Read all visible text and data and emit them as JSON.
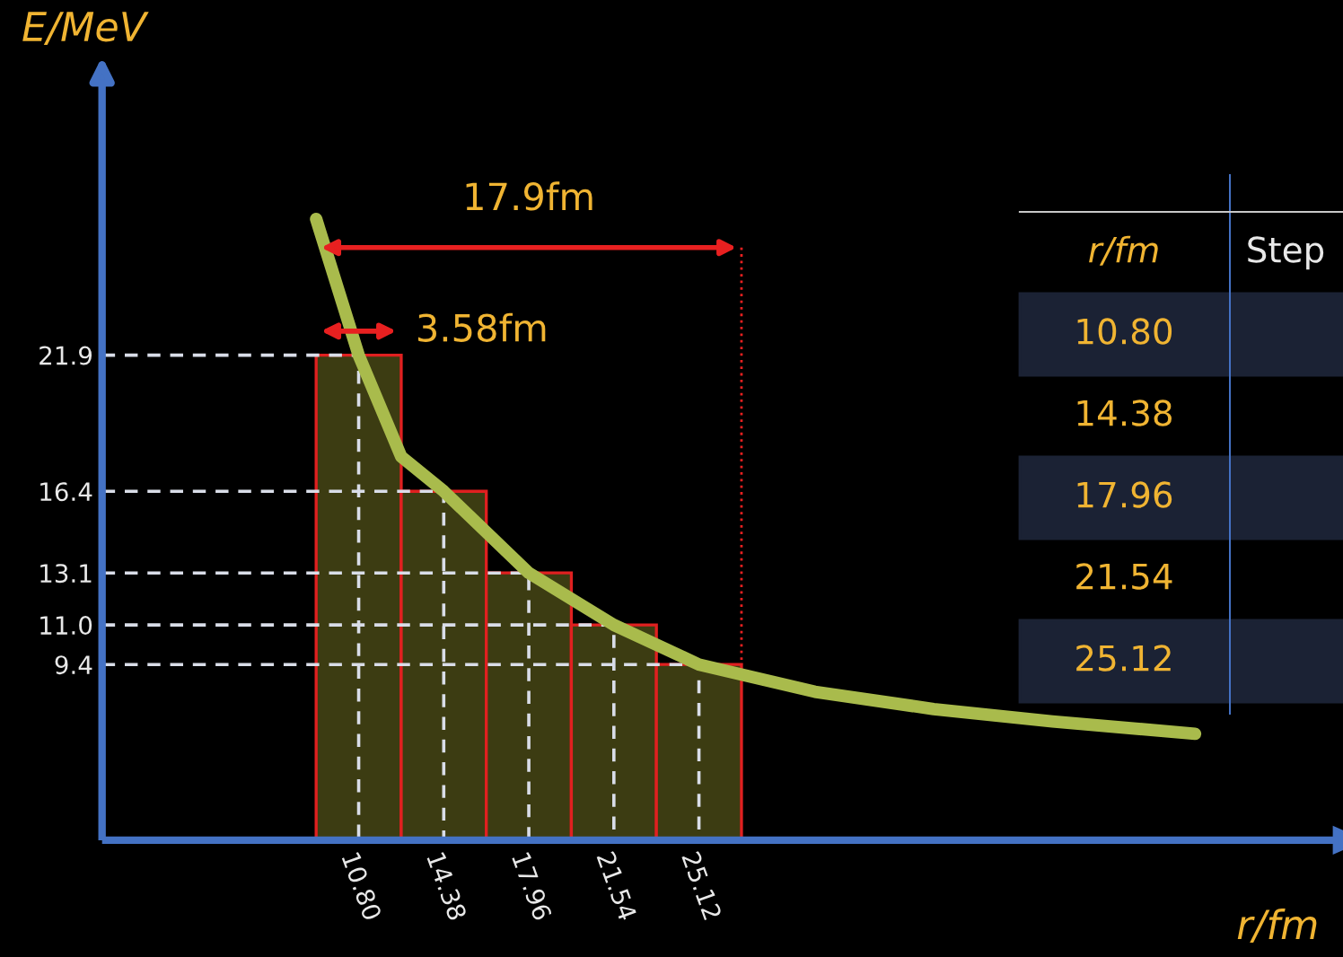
{
  "chart_data": {
    "type": "histogram",
    "xlabel": "r/fm",
    "ylabel": "E/MeV",
    "bins": [
      9.01,
      12.59,
      16.17,
      19.75,
      23.33,
      26.91
    ],
    "values": [
      21.9,
      16.4,
      13.1,
      11.0,
      9.4
    ],
    "color": "#3c3c12",
    "series": [
      {
        "type": "line",
        "color": "#a9bb4c",
        "x": [
          9.01,
          10.8,
          12.59,
          14.38,
          17.96,
          21.54,
          25.12,
          30,
          35,
          40,
          46
        ],
        "values": [
          27.4,
          21.9,
          17.8,
          16.4,
          13.1,
          11.0,
          9.4,
          8.3,
          7.6,
          7.1,
          6.6
        ]
      },
      {
        "type": "line",
        "color": "#d9dde8",
        "line_style": "dashed",
        "x": [
          0,
          10.8,
          10.8
        ],
        "values": [
          21.9,
          21.9,
          2.3
        ]
      },
      {
        "type": "line",
        "color": "#d9dde8",
        "line_style": "dashed",
        "x": [
          0,
          14.38,
          14.38
        ],
        "values": [
          16.4,
          16.4,
          2.3
        ]
      },
      {
        "type": "line",
        "color": "#d9dde8",
        "line_style": "dashed",
        "x": [
          0,
          17.96,
          17.96
        ],
        "values": [
          13.1,
          13.1,
          2.3
        ]
      },
      {
        "type": "line",
        "color": "#d9dde8",
        "line_style": "dashed",
        "x": [
          0,
          21.54,
          21.54
        ],
        "values": [
          11.0,
          11.0,
          2.3
        ]
      },
      {
        "type": "line",
        "color": "#d9dde8",
        "line_style": "dashed",
        "x": [
          0,
          25.12,
          25.12
        ],
        "values": [
          9.4,
          9.4,
          2.3
        ]
      }
    ],
    "xlim": [
      0,
      52
    ],
    "ylim": [
      2.3,
      33
    ],
    "xticks": [
      {
        "value": 10.8,
        "label": "10.80"
      },
      14.38,
      17.96,
      21.54,
      25.12
    ],
    "yticks": [
      9.4,
      {
        "value": 11.0,
        "label": "11.0"
      },
      13.1,
      16.4,
      21.9
    ],
    "grid": false,
    "legend": false,
    "annotations": [
      "17.9fm",
      "3.58fm",
      "r/fm",
      "Step",
      "10.80",
      "14.38",
      "17.96",
      "21.54",
      "25.12"
    ]
  }
}
